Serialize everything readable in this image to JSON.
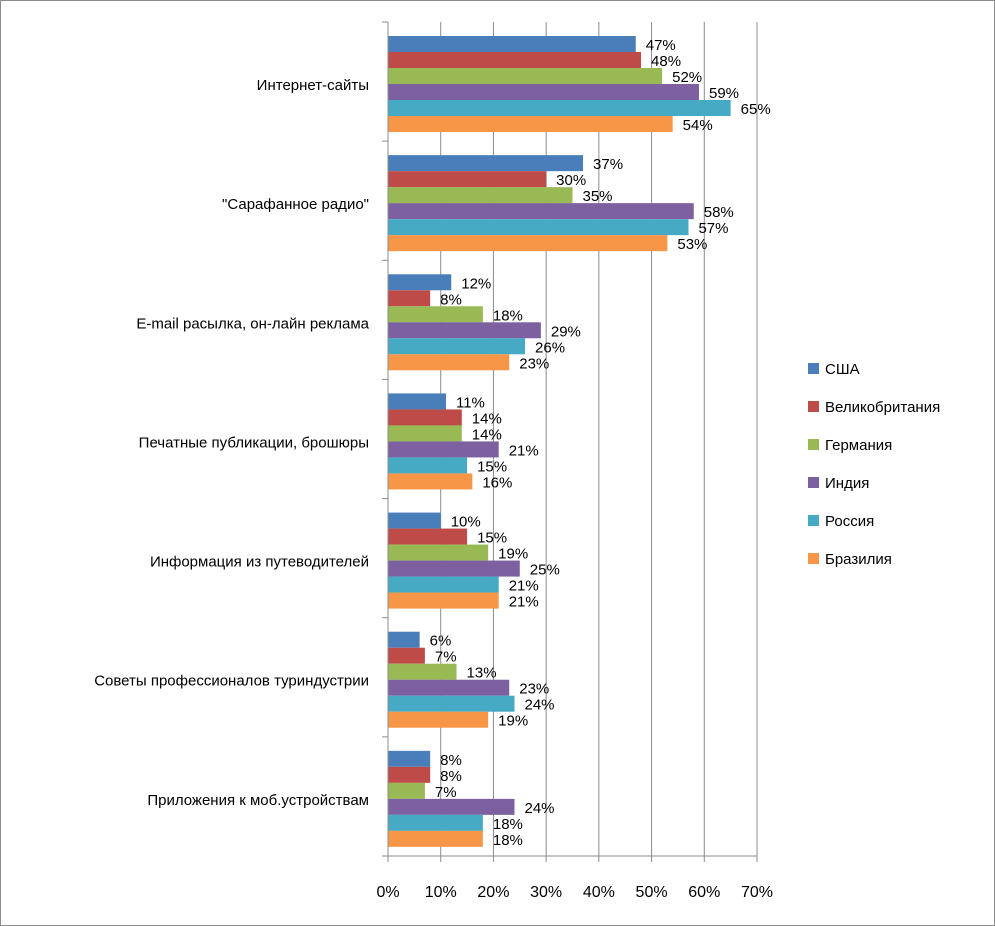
{
  "chart_data": {
    "type": "bar",
    "orientation": "horizontal",
    "categories": [
      "Интернет-сайты",
      "\"Сарафанное радио\"",
      "E-mail расылка, он-лайн реклама",
      "Печатные публикации, брошюры",
      "Информация из путеводителей",
      "Советы профессионалов туриндустрии",
      "Приложения к моб.устройствам"
    ],
    "series": [
      {
        "name": "США",
        "color": "#4a7ebb",
        "values": [
          47,
          37,
          12,
          11,
          10,
          6,
          8
        ]
      },
      {
        "name": "Великобритания",
        "color": "#be4b48",
        "values": [
          48,
          30,
          8,
          14,
          15,
          7,
          8
        ]
      },
      {
        "name": "Германия",
        "color": "#98b954",
        "values": [
          52,
          35,
          18,
          14,
          19,
          13,
          7
        ]
      },
      {
        "name": "Индия",
        "color": "#7d60a0",
        "values": [
          59,
          58,
          29,
          21,
          25,
          23,
          24
        ]
      },
      {
        "name": "Россия",
        "color": "#46aac5",
        "values": [
          65,
          57,
          26,
          15,
          21,
          24,
          18
        ]
      },
      {
        "name": "Бразилия",
        "color": "#f79646",
        "values": [
          54,
          53,
          23,
          16,
          21,
          19,
          18
        ]
      }
    ],
    "xlim": [
      0,
      70
    ],
    "xticks": [
      "0%",
      "10%",
      "20%",
      "30%",
      "40%",
      "50%",
      "60%",
      "70%"
    ],
    "value_suffix": "%",
    "grid": true,
    "legend": "right"
  }
}
